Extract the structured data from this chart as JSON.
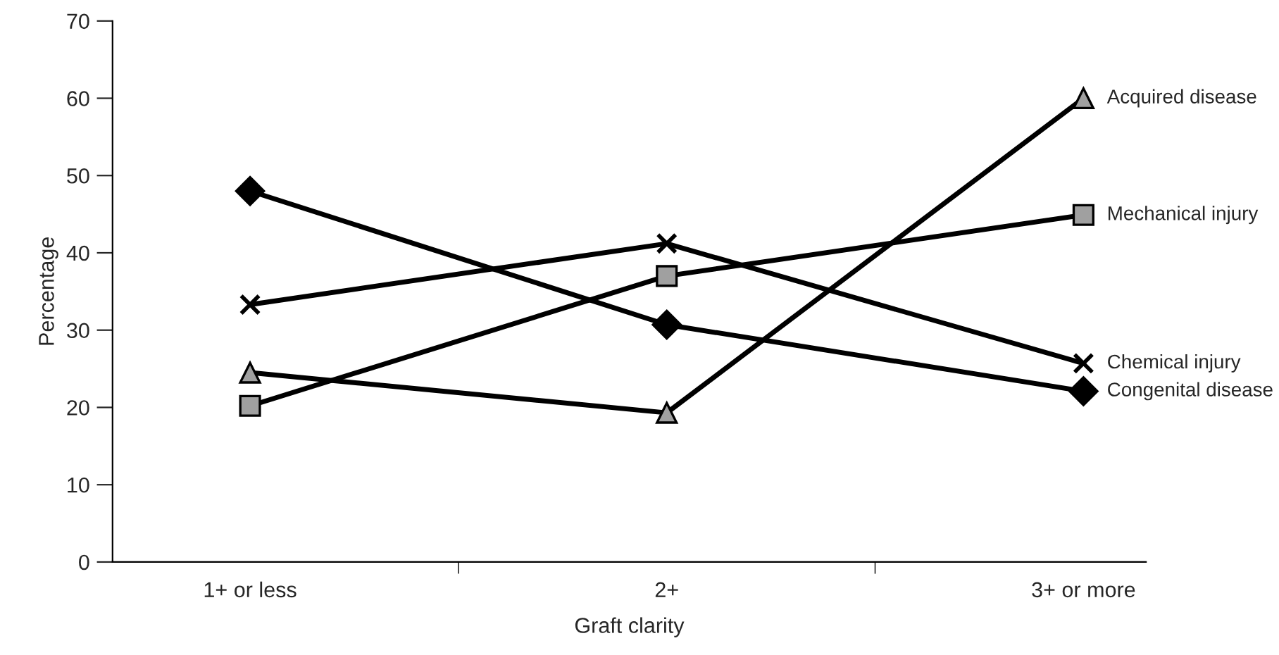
{
  "chart_data": {
    "type": "line",
    "xlabel": "Graft clarity",
    "ylabel": "Percentage",
    "categories": [
      "1+ or less",
      "2+",
      "3+ or more"
    ],
    "ylim": [
      0,
      70
    ],
    "yticks": [
      0,
      10,
      20,
      30,
      40,
      50,
      60,
      70
    ],
    "grid": false,
    "legend": false,
    "line_style": "solid",
    "series": [
      {
        "name": "Acquired disease",
        "color": "#000000",
        "marker": "triangle",
        "values": [
          24.5,
          19.3,
          60
        ]
      },
      {
        "name": "Mechanical injury",
        "color": "#000000",
        "marker": "square",
        "values": [
          20.2,
          37.0,
          44.9
        ]
      },
      {
        "name": "Chemical injury",
        "color": "#000000",
        "marker": "cross",
        "values": [
          33.3,
          41.2,
          25.7
        ]
      },
      {
        "name": "Congenital disease",
        "color": "#000000",
        "marker": "diamond",
        "values": [
          48.0,
          30.7,
          22.1
        ]
      }
    ]
  }
}
